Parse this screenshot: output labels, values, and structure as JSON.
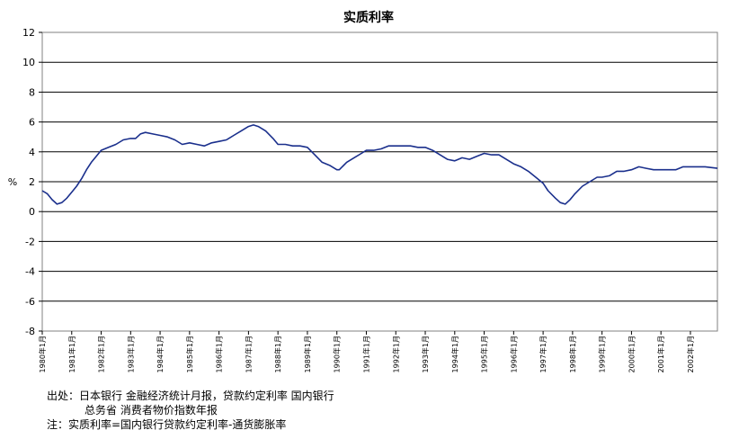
{
  "chart_data": {
    "type": "line",
    "title": "实质利率",
    "ylabel": "%",
    "ylim": [
      -8,
      12
    ],
    "yticks": [
      12,
      10,
      8,
      6,
      4,
      2,
      0,
      -2,
      -4,
      -6,
      -8
    ],
    "grid": true,
    "x_tick_labels": [
      "1980年1月",
      "1981年1月",
      "1982年1月",
      "1983年1月",
      "1984年1月",
      "1985年1月",
      "1986年1月",
      "1987年1月",
      "1988年1月",
      "1989年1月",
      "1990年1月",
      "1991年1月",
      "1992年1月",
      "1993年1月",
      "1994年1月",
      "1995年1月",
      "1996年1月",
      "1997年1月",
      "1998年1月",
      "1999年1月",
      "2000年1月",
      "2001年1月",
      "2002年1月"
    ],
    "x_start": "1980年1月",
    "x_end": "2002年12月",
    "series": [
      {
        "color": "#1a2f8c",
        "points": [
          [
            "1980-01",
            1.4
          ],
          [
            "1980-03",
            1.2
          ],
          [
            "1980-05",
            0.8
          ],
          [
            "1980-07",
            0.5
          ],
          [
            "1980-09",
            0.6
          ],
          [
            "1980-11",
            0.9
          ],
          [
            "1981-01",
            1.3
          ],
          [
            "1981-03",
            1.7
          ],
          [
            "1981-05",
            2.2
          ],
          [
            "1981-07",
            2.8
          ],
          [
            "1981-09",
            3.3
          ],
          [
            "1981-11",
            3.7
          ],
          [
            "1982-01",
            4.1
          ],
          [
            "1982-04",
            4.3
          ],
          [
            "1982-07",
            4.5
          ],
          [
            "1982-10",
            4.8
          ],
          [
            "1983-01",
            4.9
          ],
          [
            "1983-03",
            4.9
          ],
          [
            "1983-05",
            5.2
          ],
          [
            "1983-07",
            5.3
          ],
          [
            "1983-10",
            5.2
          ],
          [
            "1984-01",
            5.1
          ],
          [
            "1984-04",
            5.0
          ],
          [
            "1984-07",
            4.8
          ],
          [
            "1984-10",
            4.5
          ],
          [
            "1985-01",
            4.6
          ],
          [
            "1985-04",
            4.5
          ],
          [
            "1985-07",
            4.4
          ],
          [
            "1985-10",
            4.6
          ],
          [
            "1986-01",
            4.7
          ],
          [
            "1986-04",
            4.8
          ],
          [
            "1986-07",
            5.1
          ],
          [
            "1986-10",
            5.4
          ],
          [
            "1987-01",
            5.7
          ],
          [
            "1987-03",
            5.8
          ],
          [
            "1987-05",
            5.7
          ],
          [
            "1987-08",
            5.4
          ],
          [
            "1987-11",
            4.9
          ],
          [
            "1988-01",
            4.5
          ],
          [
            "1988-04",
            4.5
          ],
          [
            "1988-07",
            4.4
          ],
          [
            "1988-10",
            4.4
          ],
          [
            "1989-01",
            4.3
          ],
          [
            "1989-04",
            3.8
          ],
          [
            "1989-07",
            3.3
          ],
          [
            "1989-10",
            3.1
          ],
          [
            "1990-01",
            2.8
          ],
          [
            "1990-02",
            2.8
          ],
          [
            "1990-05",
            3.3
          ],
          [
            "1990-08",
            3.6
          ],
          [
            "1990-11",
            3.9
          ],
          [
            "1991-01",
            4.1
          ],
          [
            "1991-04",
            4.1
          ],
          [
            "1991-07",
            4.2
          ],
          [
            "1991-10",
            4.4
          ],
          [
            "1992-01",
            4.4
          ],
          [
            "1992-04",
            4.4
          ],
          [
            "1992-07",
            4.4
          ],
          [
            "1992-10",
            4.3
          ],
          [
            "1993-01",
            4.3
          ],
          [
            "1993-04",
            4.1
          ],
          [
            "1993-07",
            3.8
          ],
          [
            "1993-10",
            3.5
          ],
          [
            "1994-01",
            3.4
          ],
          [
            "1994-04",
            3.6
          ],
          [
            "1994-07",
            3.5
          ],
          [
            "1994-10",
            3.7
          ],
          [
            "1995-01",
            3.9
          ],
          [
            "1995-04",
            3.8
          ],
          [
            "1995-07",
            3.8
          ],
          [
            "1995-10",
            3.5
          ],
          [
            "1996-01",
            3.2
          ],
          [
            "1996-04",
            3.0
          ],
          [
            "1996-07",
            2.7
          ],
          [
            "1996-10",
            2.3
          ],
          [
            "1997-01",
            1.9
          ],
          [
            "1997-03",
            1.4
          ],
          [
            "1997-06",
            0.9
          ],
          [
            "1997-08",
            0.6
          ],
          [
            "1997-10",
            0.5
          ],
          [
            "1997-12",
            0.8
          ],
          [
            "1998-02",
            1.2
          ],
          [
            "1998-05",
            1.7
          ],
          [
            "1998-08",
            2.0
          ],
          [
            "1998-11",
            2.3
          ],
          [
            "1999-01",
            2.3
          ],
          [
            "1999-04",
            2.4
          ],
          [
            "1999-07",
            2.7
          ],
          [
            "1999-10",
            2.7
          ],
          [
            "2000-01",
            2.8
          ],
          [
            "2000-04",
            3.0
          ],
          [
            "2000-07",
            2.9
          ],
          [
            "2000-10",
            2.8
          ],
          [
            "2001-01",
            2.8
          ],
          [
            "2001-04",
            2.8
          ],
          [
            "2001-07",
            2.8
          ],
          [
            "2001-10",
            3.0
          ],
          [
            "2002-01",
            3.0
          ],
          [
            "2002-04",
            3.0
          ],
          [
            "2002-07",
            3.0
          ],
          [
            "2002-12",
            2.9
          ]
        ]
      }
    ]
  },
  "notes": {
    "source_line1": "出处：日本银行 金融经济统计月报，贷款约定利率 国内银行",
    "source_line2": "总务省 消费者物价指数年报",
    "note_line": "注：实质利率=国内银行贷款约定利率-通货膨胀率"
  }
}
